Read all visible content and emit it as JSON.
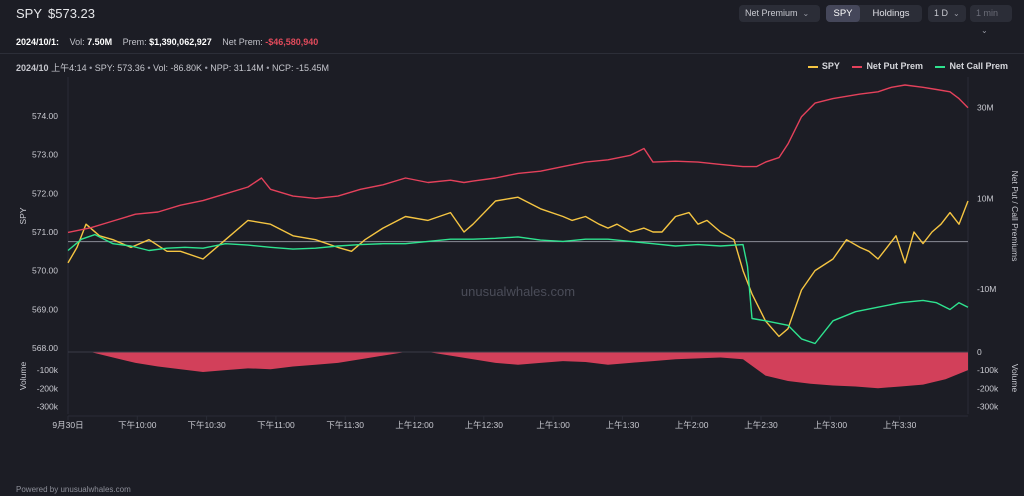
{
  "header": {
    "symbol": "SPY",
    "price": "$573.23",
    "premium_dropdown": "Net Premium",
    "segment_options": [
      "SPY",
      "Holdings"
    ],
    "range_dropdown": "1 D",
    "interval_dropdown": "1 min"
  },
  "stats": {
    "date": "2024/10/1:",
    "vol_label": "Vol:",
    "vol_value": "7.50M",
    "prem_label": "Prem:",
    "prem_value": "$1,390,062,927",
    "net_prem_label": "Net Prem:",
    "net_prem_value": "-$46,580,940"
  },
  "crosshair": {
    "date": "2024/10",
    "time": "上午4:14",
    "spy": "SPY: 573.36",
    "vol": "Vol: -86.80K",
    "npp": "NPP: 31.14M",
    "ncp": "NCP: -15.45M"
  },
  "legend": [
    {
      "label": "SPY",
      "color": "#f5c542"
    },
    {
      "label": "Net Put Prem",
      "color": "#e4415b"
    },
    {
      "label": "Net Call Prem",
      "color": "#2ee38f"
    }
  ],
  "watermark": "unusualwhales.com",
  "footer": "Powered by unusualwhales.com",
  "colors": {
    "spy": "#f5c542",
    "put": "#e4415b",
    "call": "#2ee38f",
    "volume_neg": "#d2405a",
    "volume_pos": "#2ee38f",
    "grid": "#2a2c36",
    "refline": "#8a8c96"
  },
  "chart_data": {
    "type": "line",
    "x_ticks": [
      "9月30日",
      "下午10:00",
      "下午10:30",
      "下午11:00",
      "下午11:30",
      "上午12:00",
      "上午12:30",
      "上午1:00",
      "上午1:30",
      "上午2:00",
      "上午2:30",
      "上午3:00",
      "上午3:30"
    ],
    "ylabel": "SPY",
    "y_ticks": [
      "574.00",
      "573.00",
      "572.00",
      "571.00",
      "570.00",
      "569.00",
      "568.00"
    ],
    "ylim": [
      568.0,
      574.8
    ],
    "y2label": "Net Put / Call Premiums",
    "y2_ticks": [
      "30M",
      "10M",
      "-10M"
    ],
    "y2lim": [
      -23,
      35
    ],
    "volume_label": "Volume",
    "volume_ticks_left": [
      "-100k",
      "-200k",
      "-300k"
    ],
    "volume_ticks_right": [
      "0",
      "-100k",
      "-200k",
      "-300k"
    ],
    "volume_lim": [
      -320,
      0
    ],
    "ref_line_spy": 570.75,
    "series": [
      {
        "name": "SPY",
        "axis": "left",
        "x": [
          0,
          2,
          4,
          7,
          10,
          14,
          18,
          22,
          25,
          30,
          35,
          40,
          45,
          50,
          55,
          60,
          63,
          66,
          70,
          75,
          80,
          85,
          88,
          90,
          95,
          100,
          105,
          110,
          112,
          115,
          118,
          120,
          122,
          125,
          128,
          130,
          132,
          135,
          138,
          140,
          142,
          145,
          148,
          150,
          152,
          155,
          158,
          160,
          163,
          166,
          170,
          173,
          176,
          178,
          180,
          182,
          184,
          186,
          188,
          190,
          192,
          194,
          196,
          198,
          200
        ],
        "y": [
          570.2,
          570.6,
          571.2,
          570.9,
          570.8,
          570.6,
          570.8,
          570.5,
          570.5,
          570.3,
          570.8,
          571.3,
          571.2,
          570.9,
          570.8,
          570.6,
          570.5,
          570.8,
          571.1,
          571.4,
          571.3,
          571.5,
          571.0,
          571.2,
          571.8,
          571.9,
          571.6,
          571.4,
          571.3,
          571.4,
          571.2,
          571.1,
          571.2,
          571.0,
          571.1,
          571.0,
          571.0,
          571.4,
          571.5,
          571.2,
          571.3,
          571.0,
          570.8,
          570.0,
          569.4,
          568.7,
          568.3,
          568.5,
          569.5,
          570.0,
          570.3,
          570.8,
          570.6,
          570.5,
          570.3,
          570.6,
          570.9,
          570.2,
          571.0,
          570.7,
          571.0,
          571.2,
          571.5,
          571.2,
          571.8
        ]
      },
      {
        "name": "Net Put Prem",
        "axis": "right",
        "x": [
          0,
          5,
          10,
          15,
          20,
          25,
          30,
          35,
          40,
          43,
          45,
          50,
          55,
          60,
          65,
          70,
          75,
          80,
          85,
          88,
          90,
          95,
          100,
          105,
          110,
          115,
          120,
          125,
          128,
          130,
          135,
          140,
          145,
          150,
          153,
          155,
          158,
          160,
          163,
          166,
          170,
          173,
          176,
          180,
          183,
          186,
          190,
          193,
          196,
          198,
          200
        ],
        "y": [
          2.5,
          3.5,
          5.0,
          6.5,
          7.0,
          8.5,
          9.5,
          11.0,
          12.5,
          14.5,
          12.0,
          10.5,
          10.0,
          10.5,
          12.0,
          13.0,
          14.5,
          13.5,
          14.0,
          13.5,
          13.8,
          14.5,
          15.5,
          16.0,
          17.0,
          18.0,
          18.5,
          19.5,
          21.0,
          18.0,
          18.2,
          18.0,
          17.5,
          17.0,
          17.0,
          18.0,
          19.0,
          22.0,
          28.0,
          31.0,
          32.0,
          32.5,
          33.0,
          33.5,
          34.5,
          35.0,
          34.5,
          34.0,
          33.5,
          32.0,
          30.0
        ]
      },
      {
        "name": "Net Call Prem",
        "axis": "right",
        "x": [
          0,
          3,
          6,
          10,
          14,
          18,
          22,
          26,
          30,
          35,
          40,
          45,
          50,
          55,
          60,
          65,
          70,
          75,
          80,
          85,
          90,
          95,
          100,
          105,
          110,
          115,
          120,
          125,
          130,
          135,
          140,
          145,
          150,
          151,
          152,
          155,
          160,
          163,
          166,
          170,
          175,
          180,
          185,
          190,
          193,
          196,
          198,
          200
        ],
        "y": [
          -1.5,
          1.0,
          2.0,
          0.0,
          -0.5,
          -1.5,
          -1.0,
          -0.8,
          -1.0,
          0.0,
          -0.3,
          -0.8,
          -1.2,
          -1.0,
          -0.5,
          -0.2,
          0.0,
          0.0,
          0.5,
          1.0,
          1.0,
          1.2,
          1.5,
          0.8,
          0.5,
          1.0,
          1.0,
          0.5,
          0.0,
          -0.5,
          -0.2,
          -0.5,
          -0.2,
          -5.0,
          -16.5,
          -17.0,
          -18.0,
          -21.0,
          -22.0,
          -17.0,
          -15.0,
          -14.0,
          -13.0,
          -12.5,
          -13.0,
          -14.5,
          -13.0,
          -14.0
        ]
      },
      {
        "name": "Volume",
        "axis": "volume",
        "x": [
          0,
          5,
          10,
          15,
          20,
          25,
          30,
          35,
          40,
          45,
          50,
          55,
          60,
          65,
          70,
          75,
          80,
          85,
          90,
          95,
          100,
          105,
          110,
          115,
          120,
          125,
          130,
          135,
          140,
          145,
          150,
          155,
          160,
          165,
          170,
          175,
          180,
          185,
          190,
          195,
          200
        ],
        "y": [
          10,
          0,
          -30,
          -60,
          -80,
          -95,
          -110,
          -100,
          -90,
          -95,
          -80,
          -70,
          -60,
          -40,
          -20,
          10,
          5,
          -20,
          -40,
          -60,
          -70,
          -60,
          -50,
          -55,
          -70,
          -60,
          -50,
          -40,
          -35,
          -30,
          -40,
          -130,
          -160,
          -175,
          -185,
          -190,
          -200,
          -190,
          -180,
          -150,
          -100
        ]
      }
    ]
  }
}
